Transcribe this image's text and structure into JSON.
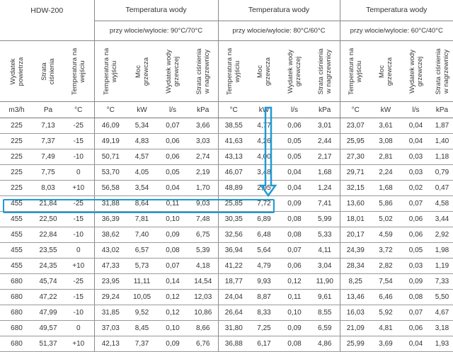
{
  "model": "HDW-200",
  "groups": [
    {
      "title": "Temperatura wody",
      "subtitle": "przy wlocie/wylocie: 90°C/70°C"
    },
    {
      "title": "Temperatura wody",
      "subtitle": "przy wlocie/wylocie: 80°C/60°C"
    },
    {
      "title": "Temperatura wody",
      "subtitle": "przy wlocie/wylocie: 60°C/40°C"
    }
  ],
  "base_columns": [
    {
      "label": "Wydatek powietrza",
      "unit": "m3/h"
    },
    {
      "label": "Strata ciśnienia",
      "unit": "Pa"
    },
    {
      "label": "Temperatura na wejściu",
      "unit": "°C"
    }
  ],
  "group_columns": [
    {
      "label": "Temperatura na wyjściu",
      "unit": "°C"
    },
    {
      "label": "Moc grzewcza",
      "unit": "kW"
    },
    {
      "label": "Wydatek wody grzewczej",
      "unit": "l/s"
    },
    {
      "label": "Strata ciśnienia w nagrzewnicy",
      "unit": "kPa"
    }
  ],
  "rows": [
    [
      "225",
      "7,13",
      "-25",
      "46,09",
      "5,34",
      "0,07",
      "3,66",
      "38,55",
      "4,77",
      "0,06",
      "3,01",
      "23,07",
      "3,61",
      "0,04",
      "1,87"
    ],
    [
      "225",
      "7,37",
      "-15",
      "49,19",
      "4,83",
      "0,06",
      "3,03",
      "41,63",
      "4,26",
      "0,05",
      "2,44",
      "25,95",
      "3,08",
      "0,04",
      "1,40"
    ],
    [
      "225",
      "7,49",
      "-10",
      "50,71",
      "4,57",
      "0,06",
      "2,74",
      "43,13",
      "4,00",
      "0,05",
      "2,17",
      "27,30",
      "2,81",
      "0,03",
      "1,18"
    ],
    [
      "225",
      "7,75",
      "0",
      "53,70",
      "4,05",
      "0,05",
      "2,19",
      "46,07",
      "3,48",
      "0,04",
      "1,68",
      "29,71",
      "2,24",
      "0,03",
      "0,79"
    ],
    [
      "225",
      "8,03",
      "+10",
      "56,58",
      "3,54",
      "0,04",
      "1,70",
      "48,89",
      "2,95",
      "0,04",
      "1,24",
      "32,15",
      "1,68",
      "0,02",
      "0,47"
    ],
    [
      "455",
      "21,84",
      "-25",
      "31,88",
      "8,64",
      "0,11",
      "9,03",
      "25,85",
      "7,72",
      "0,09",
      "7,41",
      "13,60",
      "5,86",
      "0,07",
      "4,58"
    ],
    [
      "455",
      "22,50",
      "-15",
      "36,39",
      "7,81",
      "0,10",
      "7,48",
      "30,35",
      "6,89",
      "0,08",
      "5,99",
      "18,01",
      "5,02",
      "0,06",
      "3,44"
    ],
    [
      "455",
      "22,84",
      "-10",
      "38,62",
      "7,40",
      "0,09",
      "6,75",
      "32,56",
      "6,48",
      "0,08",
      "5,33",
      "20,17",
      "4,59",
      "0,06",
      "2,92"
    ],
    [
      "455",
      "23,55",
      "0",
      "43,02",
      "6,57",
      "0,08",
      "5,39",
      "36,94",
      "5,64",
      "0,07",
      "4,11",
      "24,39",
      "3,72",
      "0,05",
      "1,98"
    ],
    [
      "455",
      "24,35",
      "+10",
      "47,33",
      "5,73",
      "0,07",
      "4,18",
      "41,22",
      "4,79",
      "0,06",
      "3,04",
      "28,34",
      "2,82",
      "0,03",
      "1,19"
    ],
    [
      "680",
      "45,74",
      "-25",
      "23,95",
      "11,11",
      "0,14",
      "14,54",
      "18,77",
      "9,93",
      "0,12",
      "11,90",
      "8,25",
      "7,54",
      "0,09",
      "7,33"
    ],
    [
      "680",
      "47,22",
      "-15",
      "29,24",
      "10,05",
      "0,12",
      "12,03",
      "24,04",
      "8,87",
      "0,11",
      "9,61",
      "13,46",
      "6,46",
      "0,08",
      "5,50"
    ],
    [
      "680",
      "47,99",
      "-10",
      "31,85",
      "9,52",
      "0,12",
      "10,86",
      "26,64",
      "8,33",
      "0,10",
      "8,55",
      "16,03",
      "5,92",
      "0,07",
      "4,67"
    ],
    [
      "680",
      "49,57",
      "0",
      "37,03",
      "8,45",
      "0,10",
      "8,66",
      "31,80",
      "7,25",
      "0,09",
      "6,59",
      "21,09",
      "4,81",
      "0,06",
      "3,18"
    ],
    [
      "680",
      "51,37",
      "+10",
      "42,13",
      "7,37",
      "0,09",
      "6,76",
      "36,88",
      "6,17",
      "0,08",
      "4,86",
      "25,99",
      "3,69",
      "0,04",
      "1,93"
    ]
  ],
  "highlight_color": "#1f9ad6"
}
